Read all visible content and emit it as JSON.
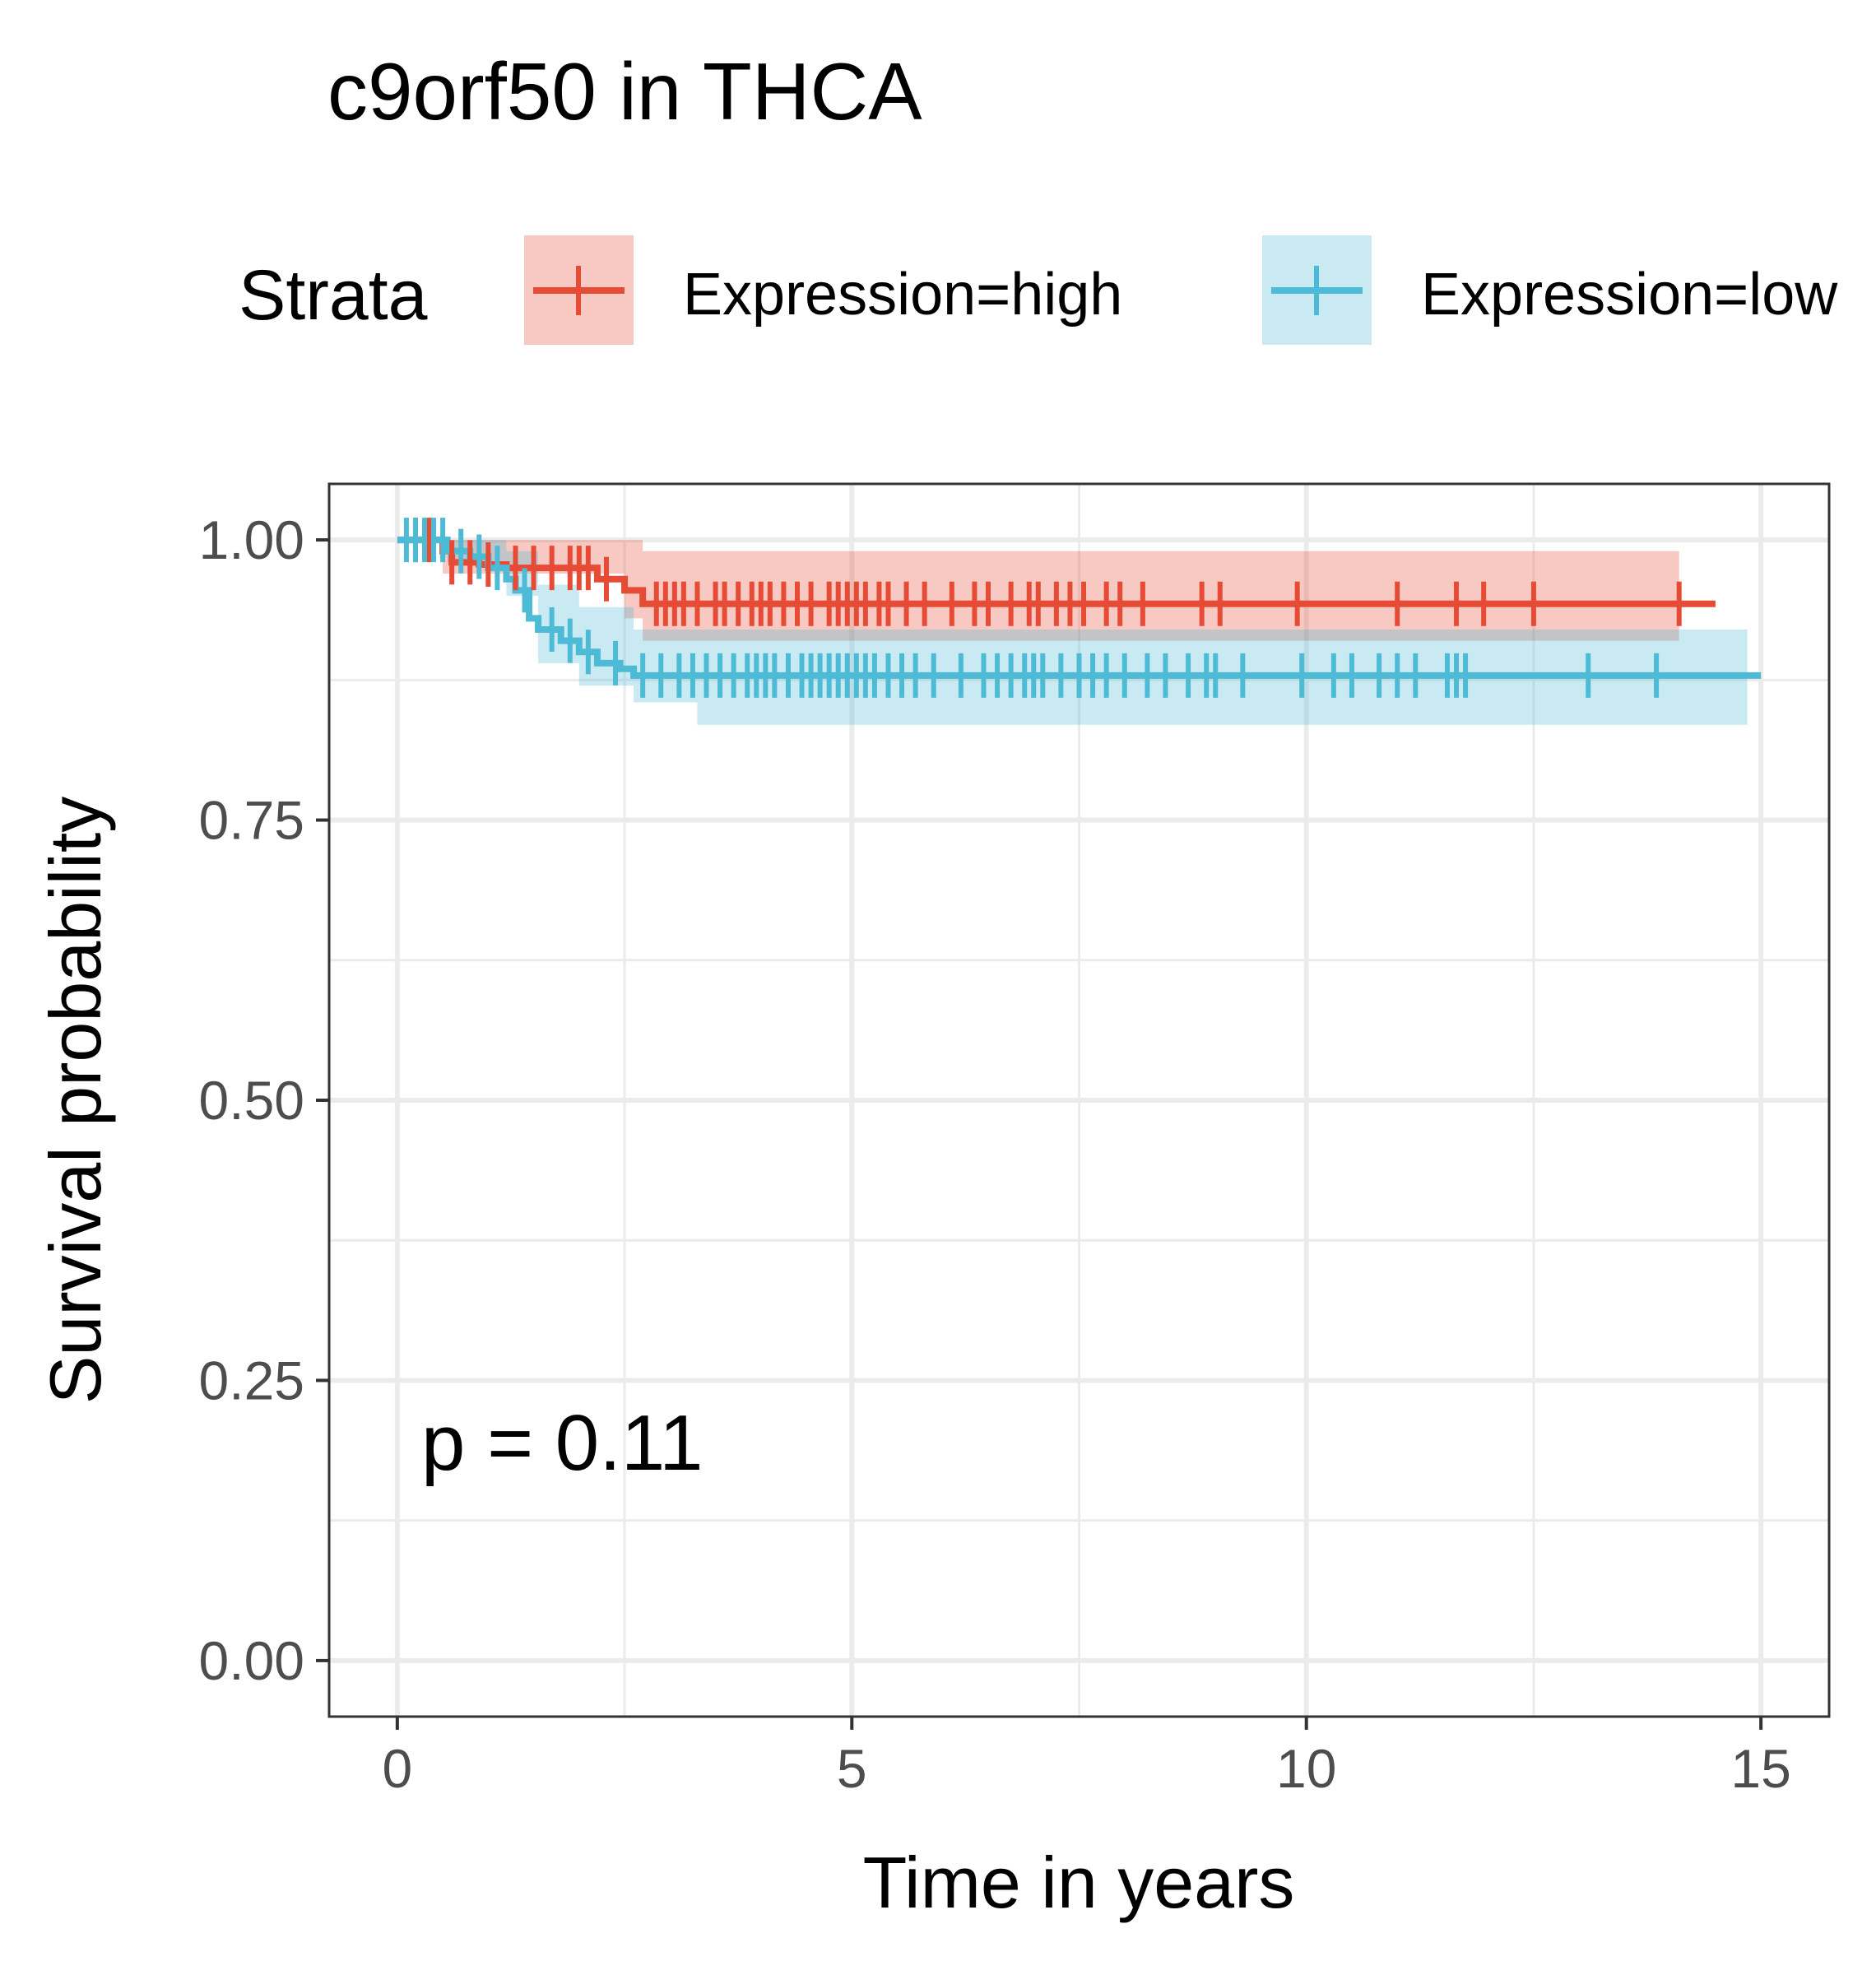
{
  "chart_data": {
    "type": "line",
    "title": "c9orf50 in THCA",
    "xlabel": "Time in years",
    "ylabel": "Survival probability",
    "xlim": [
      -0.75,
      15.75
    ],
    "ylim": [
      -0.05,
      1.05
    ],
    "x_ticks": [
      "0",
      "5",
      "10",
      "15"
    ],
    "x_tick_values": [
      0,
      5,
      10,
      15
    ],
    "y_ticks": [
      "0.00",
      "0.25",
      "0.50",
      "0.75",
      "1.00"
    ],
    "y_tick_values": [
      0,
      0.25,
      0.5,
      0.75,
      1.0
    ],
    "grid": true,
    "legend": {
      "title": "Strata",
      "placement": "top",
      "entries": [
        "Expression=high",
        "Expression=low"
      ]
    },
    "annotation": "p = 0.11",
    "series": [
      {
        "name": "Expression=high",
        "color": "#E64B35",
        "steps": [
          [
            0,
            1.0
          ],
          [
            0.5,
            0.99
          ],
          [
            0.6,
            0.98
          ],
          [
            0.9,
            0.978
          ],
          [
            1.2,
            0.975
          ],
          [
            2.2,
            0.965
          ],
          [
            2.5,
            0.955
          ],
          [
            2.7,
            0.943
          ],
          [
            14.5,
            0.943
          ]
        ],
        "ci": [
          [
            0,
            1.0,
            1.0
          ],
          [
            0.5,
            0.97,
            1.0
          ],
          [
            2.5,
            0.93,
            1.0
          ],
          [
            2.7,
            0.91,
            0.99
          ],
          [
            14.1,
            0.91,
            0.99
          ]
        ],
        "censor": [
          0.2,
          0.35,
          0.6,
          0.8,
          1.0,
          1.3,
          1.5,
          1.7,
          1.9,
          2.0,
          2.1,
          2.3,
          2.85,
          2.95,
          3.05,
          3.15,
          3.3,
          3.5,
          3.6,
          3.75,
          3.9,
          4.0,
          4.1,
          4.25,
          4.4,
          4.55,
          4.75,
          4.85,
          4.95,
          5.05,
          5.15,
          5.3,
          5.4,
          5.6,
          5.8,
          6.1,
          6.35,
          6.5,
          6.75,
          6.95,
          7.05,
          7.25,
          7.4,
          7.55,
          7.8,
          7.95,
          8.2,
          8.85,
          9.05,
          9.9,
          11.0,
          11.65,
          11.95,
          12.5,
          14.1
        ]
      },
      {
        "name": "Expression=low",
        "color": "#4DBBD5",
        "steps": [
          [
            0,
            1.0
          ],
          [
            0.55,
            0.99
          ],
          [
            0.8,
            0.985
          ],
          [
            1.0,
            0.975
          ],
          [
            1.2,
            0.965
          ],
          [
            1.3,
            0.955
          ],
          [
            1.45,
            0.93
          ],
          [
            1.55,
            0.92
          ],
          [
            1.8,
            0.91
          ],
          [
            2.0,
            0.9
          ],
          [
            2.2,
            0.89
          ],
          [
            2.45,
            0.885
          ],
          [
            2.6,
            0.879
          ],
          [
            15.0,
            0.879
          ]
        ],
        "ci": [
          [
            0,
            1.0,
            1.0
          ],
          [
            0.55,
            0.98,
            1.0
          ],
          [
            1.2,
            0.95,
            0.99
          ],
          [
            1.55,
            0.89,
            0.96
          ],
          [
            2.0,
            0.87,
            0.94
          ],
          [
            2.6,
            0.855,
            0.92
          ],
          [
            3.3,
            0.835,
            0.92
          ],
          [
            14.85,
            0.835,
            0.92
          ]
        ],
        "censor": [
          0.1,
          0.2,
          0.3,
          0.4,
          0.5,
          0.7,
          0.9,
          1.1,
          1.4,
          1.7,
          1.9,
          2.1,
          2.4,
          2.7,
          2.9,
          3.1,
          3.25,
          3.4,
          3.55,
          3.7,
          3.85,
          3.95,
          4.05,
          4.15,
          4.3,
          4.45,
          4.55,
          4.65,
          4.75,
          4.85,
          4.95,
          5.05,
          5.15,
          5.25,
          5.4,
          5.55,
          5.7,
          5.9,
          6.2,
          6.45,
          6.6,
          6.75,
          6.9,
          7.0,
          7.1,
          7.3,
          7.5,
          7.65,
          7.8,
          8.0,
          8.25,
          8.45,
          8.7,
          8.9,
          9.0,
          9.3,
          9.95,
          10.3,
          10.5,
          10.8,
          11.0,
          11.2,
          11.55,
          11.65,
          11.75,
          13.1,
          13.85
        ]
      }
    ]
  }
}
